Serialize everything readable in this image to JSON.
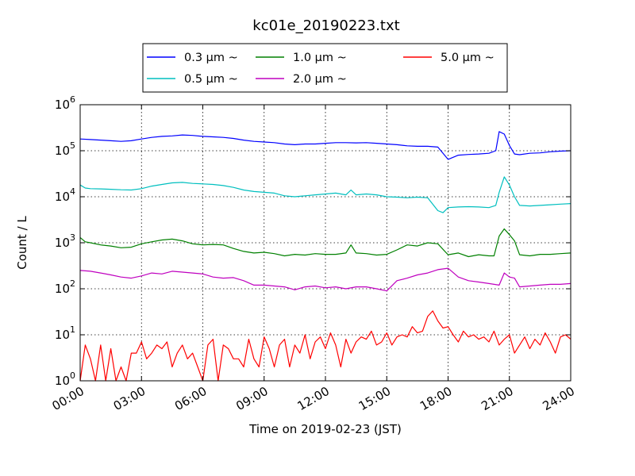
{
  "chart_data": {
    "type": "line",
    "title": "kc01e_20190223.txt",
    "xlabel": "Time on 2019-02-23 (JST)",
    "ylabel": "Count / L",
    "y_scale": "log",
    "ylim": [
      1,
      1000000
    ],
    "xlim": [
      "00:00",
      "24:00"
    ],
    "x_ticks": [
      "00:00",
      "03:00",
      "06:00",
      "09:00",
      "12:00",
      "15:00",
      "18:00",
      "21:00",
      "24:00"
    ],
    "y_ticks": [
      {
        "base": "10",
        "exp": "0",
        "value": 1
      },
      {
        "base": "10",
        "exp": "1",
        "value": 10
      },
      {
        "base": "10",
        "exp": "2",
        "value": 100
      },
      {
        "base": "10",
        "exp": "3",
        "value": 1000
      },
      {
        "base": "10",
        "exp": "4",
        "value": 10000
      },
      {
        "base": "10",
        "exp": "5",
        "value": 100000
      },
      {
        "base": "10",
        "exp": "6",
        "value": 1000000
      }
    ],
    "grid": true,
    "legend_position": "top-center",
    "series": [
      {
        "name": "0.3 μm ~",
        "color": "#0000ff",
        "x": [
          "00:00",
          "00:30",
          "01:00",
          "01:30",
          "02:00",
          "02:30",
          "03:00",
          "03:30",
          "04:00",
          "04:30",
          "05:00",
          "05:30",
          "06:00",
          "06:30",
          "07:00",
          "07:30",
          "08:00",
          "08:30",
          "09:00",
          "09:30",
          "10:00",
          "10:30",
          "11:00",
          "11:30",
          "12:00",
          "12:30",
          "13:00",
          "13:30",
          "14:00",
          "14:30",
          "15:00",
          "15:30",
          "16:00",
          "16:30",
          "17:00",
          "17:30",
          "18:00",
          "18:30",
          "19:00",
          "19:30",
          "20:00",
          "20:20",
          "20:30",
          "20:45",
          "21:00",
          "21:15",
          "21:30",
          "22:00",
          "22:30",
          "23:00",
          "23:30",
          "24:00"
        ],
        "y": [
          180000,
          175000,
          170000,
          165000,
          160000,
          165000,
          180000,
          195000,
          205000,
          210000,
          220000,
          215000,
          205000,
          200000,
          195000,
          185000,
          170000,
          160000,
          155000,
          150000,
          140000,
          135000,
          140000,
          140000,
          145000,
          150000,
          150000,
          148000,
          150000,
          145000,
          140000,
          135000,
          128000,
          125000,
          125000,
          120000,
          65000,
          80000,
          83000,
          85000,
          88000,
          100000,
          260000,
          230000,
          130000,
          85000,
          82000,
          88000,
          90000,
          95000,
          98000,
          100000
        ]
      },
      {
        "name": "0.5 μm ~",
        "color": "#00bfbf",
        "x": [
          "00:00",
          "00:15",
          "00:30",
          "01:00",
          "01:30",
          "02:00",
          "02:30",
          "03:00",
          "03:30",
          "04:00",
          "04:30",
          "05:00",
          "05:30",
          "06:00",
          "06:30",
          "07:00",
          "07:30",
          "08:00",
          "08:30",
          "09:00",
          "09:30",
          "10:00",
          "10:30",
          "11:00",
          "11:30",
          "12:00",
          "12:30",
          "13:00",
          "13:15",
          "13:30",
          "14:00",
          "14:30",
          "15:00",
          "15:30",
          "16:00",
          "16:30",
          "17:00",
          "17:30",
          "17:45",
          "18:00",
          "18:30",
          "19:00",
          "19:30",
          "20:00",
          "20:20",
          "20:30",
          "20:45",
          "21:00",
          "21:15",
          "21:30",
          "22:00",
          "22:30",
          "23:00",
          "23:30",
          "24:00"
        ],
        "y": [
          18000,
          15500,
          15000,
          14800,
          14500,
          14200,
          14000,
          15000,
          17000,
          18500,
          20000,
          20500,
          19500,
          19000,
          18500,
          17500,
          16000,
          14000,
          13000,
          12500,
          12000,
          10500,
          10000,
          10500,
          11000,
          11500,
          12000,
          11000,
          14000,
          11000,
          11500,
          11000,
          10000,
          9800,
          9500,
          9800,
          9500,
          5000,
          4500,
          5800,
          6000,
          6100,
          6000,
          5800,
          6500,
          12500,
          27000,
          18000,
          10000,
          6500,
          6300,
          6500,
          6700,
          6900,
          7100
        ]
      },
      {
        "name": "1.0 μm ~",
        "color": "#008000",
        "x": [
          "00:00",
          "00:15",
          "00:30",
          "01:00",
          "01:30",
          "02:00",
          "02:30",
          "03:00",
          "03:30",
          "04:00",
          "04:30",
          "05:00",
          "05:30",
          "06:00",
          "06:30",
          "07:00",
          "07:30",
          "08:00",
          "08:30",
          "09:00",
          "09:30",
          "10:00",
          "10:30",
          "11:00",
          "11:30",
          "12:00",
          "12:30",
          "13:00",
          "13:15",
          "13:30",
          "14:00",
          "14:30",
          "15:00",
          "15:30",
          "16:00",
          "16:30",
          "17:00",
          "17:30",
          "18:00",
          "18:30",
          "19:00",
          "19:30",
          "20:00",
          "20:15",
          "20:30",
          "20:45",
          "21:00",
          "21:15",
          "21:30",
          "22:00",
          "22:30",
          "23:00",
          "23:30",
          "24:00"
        ],
        "y": [
          1300,
          1050,
          1000,
          900,
          850,
          780,
          800,
          950,
          1050,
          1150,
          1200,
          1100,
          950,
          900,
          920,
          900,
          750,
          650,
          600,
          620,
          580,
          520,
          560,
          540,
          580,
          560,
          560,
          600,
          900,
          600,
          580,
          540,
          560,
          700,
          900,
          850,
          1000,
          950,
          550,
          600,
          500,
          550,
          520,
          520,
          1400,
          2000,
          1500,
          1100,
          550,
          520,
          560,
          560,
          580,
          600
        ]
      },
      {
        "name": "2.0 μm ~",
        "color": "#bf00bf",
        "x": [
          "00:00",
          "00:30",
          "01:00",
          "01:30",
          "02:00",
          "02:30",
          "03:00",
          "03:30",
          "04:00",
          "04:30",
          "05:00",
          "05:30",
          "06:00",
          "06:30",
          "07:00",
          "07:30",
          "08:00",
          "08:30",
          "09:00",
          "09:30",
          "10:00",
          "10:30",
          "11:00",
          "11:30",
          "12:00",
          "12:30",
          "13:00",
          "13:30",
          "14:00",
          "14:30",
          "15:00",
          "15:30",
          "16:00",
          "16:30",
          "17:00",
          "17:30",
          "18:00",
          "18:30",
          "19:00",
          "19:30",
          "20:00",
          "20:30",
          "20:45",
          "21:00",
          "21:15",
          "21:30",
          "22:00",
          "22:30",
          "23:00",
          "23:30",
          "24:00"
        ],
        "y": [
          250,
          240,
          220,
          200,
          180,
          170,
          190,
          220,
          210,
          240,
          230,
          220,
          210,
          180,
          170,
          175,
          150,
          120,
          120,
          115,
          110,
          95,
          110,
          115,
          105,
          110,
          100,
          110,
          110,
          100,
          90,
          150,
          170,
          200,
          220,
          260,
          280,
          180,
          150,
          140,
          130,
          120,
          220,
          180,
          170,
          110,
          115,
          120,
          125,
          125,
          130
        ]
      },
      {
        "name": "5.0 μm ~",
        "color": "#ff0000",
        "x": [
          "00:00",
          "00:15",
          "00:30",
          "00:45",
          "01:00",
          "01:15",
          "01:30",
          "01:45",
          "02:00",
          "02:15",
          "02:30",
          "02:45",
          "03:00",
          "03:15",
          "03:30",
          "03:45",
          "04:00",
          "04:15",
          "04:30",
          "04:45",
          "05:00",
          "05:15",
          "05:30",
          "05:45",
          "06:00",
          "06:15",
          "06:30",
          "06:45",
          "07:00",
          "07:15",
          "07:30",
          "07:45",
          "08:00",
          "08:15",
          "08:30",
          "08:45",
          "09:00",
          "09:15",
          "09:30",
          "09:45",
          "10:00",
          "10:15",
          "10:30",
          "10:45",
          "11:00",
          "11:15",
          "11:30",
          "11:45",
          "12:00",
          "12:15",
          "12:30",
          "12:45",
          "13:00",
          "13:15",
          "13:30",
          "13:45",
          "14:00",
          "14:15",
          "14:30",
          "14:45",
          "15:00",
          "15:15",
          "15:30",
          "15:45",
          "16:00",
          "16:15",
          "16:30",
          "16:45",
          "17:00",
          "17:15",
          "17:30",
          "17:45",
          "18:00",
          "18:15",
          "18:30",
          "18:45",
          "19:00",
          "19:15",
          "19:30",
          "19:45",
          "20:00",
          "20:15",
          "20:30",
          "20:45",
          "21:00",
          "21:15",
          "21:30",
          "21:45",
          "22:00",
          "22:15",
          "22:30",
          "22:45",
          "23:00",
          "23:15",
          "23:30",
          "23:45",
          "24:00"
        ],
        "y": [
          1,
          6,
          3,
          1,
          6,
          1,
          5,
          1,
          2,
          1,
          4,
          4,
          7,
          3,
          4,
          6,
          5,
          7,
          2,
          4,
          6,
          3,
          4,
          2,
          1,
          6,
          8,
          1,
          6,
          5,
          3,
          3,
          2,
          8,
          3,
          2,
          9,
          5,
          2,
          6,
          8,
          2,
          6,
          4,
          10,
          3,
          7,
          9,
          5,
          11,
          6,
          2,
          8,
          4,
          7,
          9,
          8,
          12,
          6,
          7,
          11,
          6,
          9,
          10,
          9,
          15,
          11,
          12,
          25,
          33,
          20,
          14,
          15,
          10,
          7,
          12,
          9,
          10,
          8,
          9,
          7,
          12,
          6,
          8,
          10,
          4,
          6,
          9,
          5,
          8,
          6,
          11,
          7,
          4,
          9,
          10,
          8
        ]
      }
    ]
  }
}
